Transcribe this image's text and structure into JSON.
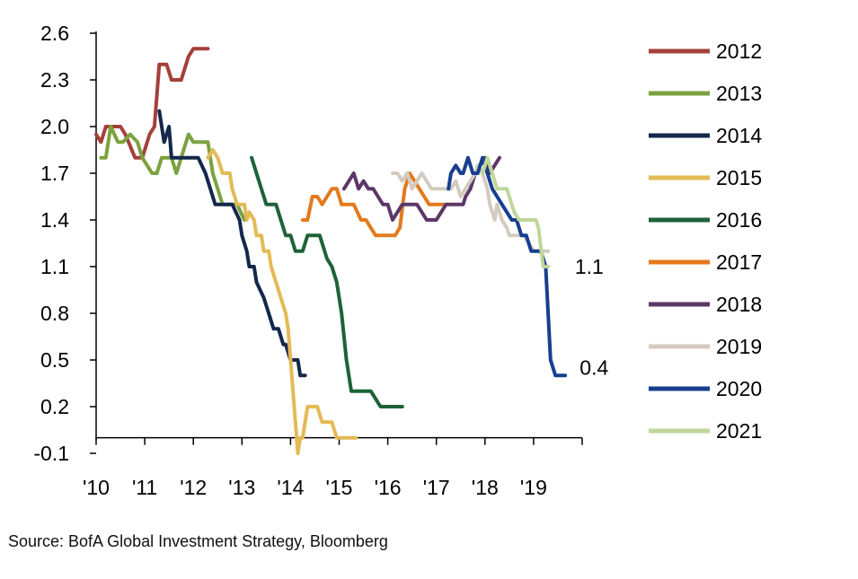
{
  "source": "Source: BofA Global Investment Strategy, Bloomberg",
  "chart_data": {
    "type": "line",
    "x_ticks": [
      "'10",
      "'11",
      "'12",
      "'13",
      "'14",
      "'15",
      "'16",
      "'17",
      "'18",
      "'19"
    ],
    "y_ticks": [
      "2.6",
      "2.3",
      "2.0",
      "1.7",
      "1.4",
      "1.1",
      "0.8",
      "0.5",
      "0.2",
      "-0.1"
    ],
    "xlim": [
      2010,
      2020
    ],
    "ylim": [
      -0.1,
      2.6
    ],
    "annotations": [
      {
        "text": "1.1",
        "x": 2019.85,
        "y": 1.1
      },
      {
        "text": "0.4",
        "x": 2019.95,
        "y": 0.45
      }
    ],
    "series": [
      {
        "name": "2012",
        "color": "#A5403A",
        "x": [
          2010.0,
          2010.1,
          2010.2,
          2010.35,
          2010.5,
          2010.6,
          2010.8,
          2010.95,
          2011.1,
          2011.2,
          2011.3,
          2011.45,
          2011.55,
          2011.75,
          2011.9,
          2012.0,
          2012.3
        ],
        "y": [
          1.95,
          1.9,
          2.0,
          2.0,
          2.0,
          1.95,
          1.8,
          1.8,
          1.95,
          2.0,
          2.4,
          2.4,
          2.3,
          2.3,
          2.45,
          2.5,
          2.5
        ]
      },
      {
        "name": "2013",
        "color": "#7BA23F",
        "x": [
          2010.1,
          2010.2,
          2010.3,
          2010.45,
          2010.55,
          2010.7,
          2010.85,
          2010.95,
          2011.05,
          2011.15,
          2011.25,
          2011.35,
          2011.55,
          2011.65,
          2011.75,
          2011.9,
          2012.0,
          2012.3,
          2012.4,
          2012.5,
          2012.6,
          2012.75,
          2012.9,
          2013.05
        ],
        "y": [
          1.8,
          1.8,
          2.0,
          1.9,
          1.9,
          1.95,
          1.9,
          1.8,
          1.75,
          1.7,
          1.7,
          1.8,
          1.8,
          1.7,
          1.8,
          1.95,
          1.9,
          1.9,
          1.7,
          1.6,
          1.5,
          1.5,
          1.5,
          1.4
        ]
      },
      {
        "name": "2014",
        "color": "#14284B",
        "x": [
          2011.3,
          2011.4,
          2011.5,
          2011.55,
          2011.65,
          2011.75,
          2011.9,
          2012.1,
          2012.25,
          2012.35,
          2012.45,
          2012.6,
          2012.8,
          2012.95,
          2013.0,
          2013.1,
          2013.15,
          2013.25,
          2013.3,
          2013.45,
          2013.55,
          2013.65,
          2013.75,
          2013.85,
          2013.9,
          2014.0,
          2014.05,
          2014.15,
          2014.2,
          2014.3
        ],
        "y": [
          2.1,
          1.9,
          2.0,
          1.8,
          1.8,
          1.8,
          1.8,
          1.8,
          1.7,
          1.6,
          1.5,
          1.5,
          1.5,
          1.4,
          1.3,
          1.2,
          1.1,
          1.1,
          1.0,
          0.9,
          0.8,
          0.7,
          0.7,
          0.6,
          0.6,
          0.5,
          0.5,
          0.5,
          0.4,
          0.4
        ]
      },
      {
        "name": "2015",
        "color": "#E3BA55",
        "x": [
          2012.3,
          2012.4,
          2012.5,
          2012.6,
          2012.65,
          2012.75,
          2012.8,
          2012.9,
          2013.0,
          2013.05,
          2013.1,
          2013.15,
          2013.25,
          2013.3,
          2013.4,
          2013.45,
          2013.55,
          2013.6,
          2013.7,
          2013.8,
          2013.9,
          2013.95,
          2014.05,
          2014.15,
          2014.2,
          2014.25,
          2014.35,
          2014.45,
          2014.55,
          2014.65,
          2014.75,
          2014.85,
          2014.95,
          2015.05,
          2015.15,
          2015.25,
          2015.35
        ],
        "y": [
          1.8,
          1.85,
          1.8,
          1.7,
          1.7,
          1.7,
          1.6,
          1.5,
          1.5,
          1.5,
          1.4,
          1.45,
          1.4,
          1.3,
          1.3,
          1.2,
          1.2,
          1.1,
          1.0,
          0.9,
          0.8,
          0.7,
          0.3,
          -0.1,
          0.0,
          0.0,
          0.2,
          0.2,
          0.2,
          0.1,
          0.1,
          0.1,
          0.0,
          0.0,
          0.0,
          0.0,
          0.0
        ]
      },
      {
        "name": "2016",
        "color": "#1E6238",
        "x": [
          2013.2,
          2013.3,
          2013.4,
          2013.5,
          2013.6,
          2013.7,
          2013.8,
          2013.9,
          2014.0,
          2014.1,
          2014.15,
          2014.25,
          2014.35,
          2014.5,
          2014.6,
          2014.7,
          2014.75,
          2014.85,
          2014.95,
          2015.05,
          2015.15,
          2015.25,
          2015.35,
          2015.45,
          2015.55,
          2015.65,
          2015.75,
          2015.85,
          2015.95,
          2016.05,
          2016.15,
          2016.3
        ],
        "y": [
          1.8,
          1.7,
          1.6,
          1.5,
          1.5,
          1.5,
          1.4,
          1.3,
          1.3,
          1.2,
          1.2,
          1.2,
          1.3,
          1.3,
          1.3,
          1.2,
          1.15,
          1.1,
          1.0,
          0.8,
          0.5,
          0.3,
          0.3,
          0.3,
          0.3,
          0.3,
          0.25,
          0.2,
          0.2,
          0.2,
          0.2,
          0.2
        ]
      },
      {
        "name": "2017",
        "color": "#E37A1E",
        "x": [
          2014.25,
          2014.35,
          2014.45,
          2014.55,
          2014.65,
          2014.75,
          2014.85,
          2014.95,
          2015.05,
          2015.15,
          2015.3,
          2015.45,
          2015.55,
          2015.65,
          2015.75,
          2015.85,
          2015.95,
          2016.05,
          2016.15,
          2016.25,
          2016.35,
          2016.45,
          2016.55,
          2016.65,
          2016.75,
          2016.85,
          2016.95,
          2017.05,
          2017.15,
          2017.25
        ],
        "y": [
          1.4,
          1.4,
          1.55,
          1.55,
          1.5,
          1.55,
          1.6,
          1.6,
          1.5,
          1.5,
          1.5,
          1.4,
          1.4,
          1.35,
          1.3,
          1.3,
          1.3,
          1.3,
          1.3,
          1.35,
          1.6,
          1.7,
          1.65,
          1.6,
          1.55,
          1.5,
          1.5,
          1.5,
          1.5,
          1.5
        ]
      },
      {
        "name": "2018",
        "color": "#5C3868",
        "x": [
          2015.1,
          2015.2,
          2015.3,
          2015.4,
          2015.5,
          2015.6,
          2015.7,
          2015.8,
          2015.9,
          2016.0,
          2016.1,
          2016.2,
          2016.3,
          2016.4,
          2016.5,
          2016.6,
          2016.7,
          2016.8,
          2016.9,
          2017.0,
          2017.1,
          2017.2,
          2017.3,
          2017.35,
          2017.45,
          2017.55,
          2017.6,
          2017.7,
          2017.8,
          2017.9,
          2018.0,
          2018.1,
          2018.2,
          2018.3
        ],
        "y": [
          1.6,
          1.65,
          1.7,
          1.6,
          1.65,
          1.6,
          1.6,
          1.55,
          1.5,
          1.5,
          1.4,
          1.45,
          1.5,
          1.5,
          1.5,
          1.5,
          1.45,
          1.4,
          1.4,
          1.4,
          1.45,
          1.5,
          1.5,
          1.5,
          1.5,
          1.5,
          1.55,
          1.6,
          1.7,
          1.75,
          1.8,
          1.7,
          1.75,
          1.8
        ]
      },
      {
        "name": "2019",
        "color": "#D4CBC0",
        "x": [
          2016.1,
          2016.2,
          2016.3,
          2016.4,
          2016.5,
          2016.6,
          2016.7,
          2016.8,
          2016.9,
          2017.0,
          2017.1,
          2017.2,
          2017.3,
          2017.4,
          2017.5,
          2017.6,
          2017.7,
          2017.8,
          2017.85,
          2017.95,
          2018.05,
          2018.1,
          2018.2,
          2018.25,
          2018.35,
          2018.45,
          2018.5,
          2018.6,
          2018.7,
          2018.8,
          2018.9,
          2019.0,
          2019.1,
          2019.2,
          2019.3
        ],
        "y": [
          1.7,
          1.7,
          1.65,
          1.7,
          1.6,
          1.65,
          1.7,
          1.65,
          1.6,
          1.6,
          1.6,
          1.6,
          1.6,
          1.65,
          1.55,
          1.6,
          1.65,
          1.7,
          1.75,
          1.7,
          1.6,
          1.5,
          1.4,
          1.5,
          1.4,
          1.35,
          1.3,
          1.3,
          1.3,
          1.3,
          1.25,
          1.2,
          1.2,
          1.2,
          1.2
        ]
      },
      {
        "name": "2020",
        "color": "#173F8F",
        "x": [
          2017.25,
          2017.3,
          2017.4,
          2017.5,
          2017.55,
          2017.65,
          2017.75,
          2017.85,
          2017.95,
          2018.05,
          2018.15,
          2018.25,
          2018.35,
          2018.45,
          2018.55,
          2018.65,
          2018.75,
          2018.85,
          2018.95,
          2019.05,
          2019.15,
          2019.25,
          2019.3,
          2019.35,
          2019.45,
          2019.55,
          2019.65
        ],
        "y": [
          1.6,
          1.7,
          1.75,
          1.7,
          1.7,
          1.8,
          1.7,
          1.7,
          1.8,
          1.7,
          1.6,
          1.55,
          1.5,
          1.45,
          1.4,
          1.4,
          1.3,
          1.3,
          1.2,
          1.2,
          1.2,
          1.1,
          0.8,
          0.5,
          0.4,
          0.4,
          0.4
        ]
      },
      {
        "name": "2021",
        "color": "#BFD79A",
        "x": [
          2017.95,
          2018.05,
          2018.15,
          2018.25,
          2018.35,
          2018.45,
          2018.55,
          2018.6,
          2018.7,
          2018.75,
          2018.85,
          2018.95,
          2019.05,
          2019.1,
          2019.2,
          2019.3
        ],
        "y": [
          1.7,
          1.8,
          1.7,
          1.6,
          1.6,
          1.6,
          1.5,
          1.45,
          1.4,
          1.4,
          1.4,
          1.4,
          1.4,
          1.35,
          1.1,
          1.1
        ]
      }
    ]
  }
}
